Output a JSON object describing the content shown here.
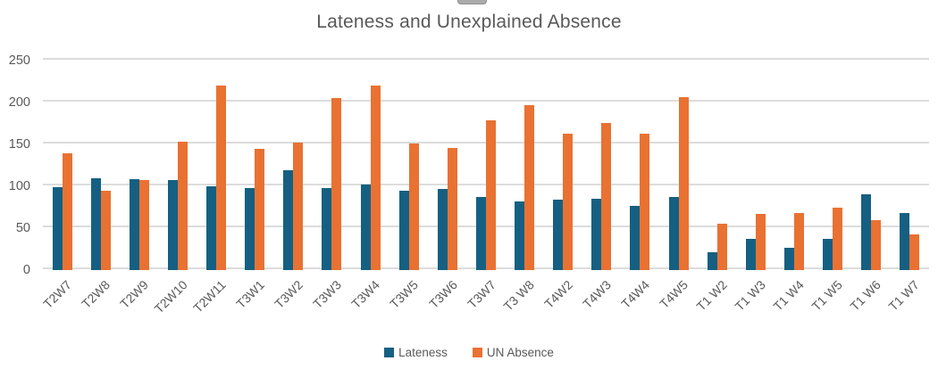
{
  "chart_data": {
    "type": "bar",
    "title": "Lateness and Unexplained Absence",
    "categories": [
      "T2W7",
      "T2W8",
      "T2W9",
      "T2W10",
      "T2W11",
      "T3W1",
      "T3W2",
      "T3W3",
      "T3W4",
      "T3W5",
      "T3W6",
      "T3W7",
      "T3 W8",
      "T4W2",
      "T4W3",
      "T4W4",
      "T4W5",
      "T1 W2",
      "T1 W3",
      "T1 W4",
      "T1 W5",
      "T1 W6",
      "T1 W7"
    ],
    "series": [
      {
        "name": "Lateness",
        "color": "#156082",
        "values": [
          99,
          110,
          108,
          107,
          100,
          98,
          119,
          98,
          102,
          95,
          97,
          87,
          82,
          84,
          85,
          77,
          87,
          21,
          37,
          27,
          37,
          90,
          68
        ]
      },
      {
        "name": "UN Absence",
        "color": "#E97132",
        "values": [
          139,
          95,
          107,
          153,
          220,
          145,
          152,
          205,
          220,
          151,
          146,
          179,
          197,
          163,
          176,
          163,
          206,
          55,
          67,
          68,
          75,
          60,
          43
        ]
      }
    ],
    "xlabel": "",
    "ylabel": "",
    "ylim": [
      0,
      250
    ],
    "yticks": [
      0,
      50,
      100,
      150,
      200,
      250
    ],
    "grid": true,
    "legend_position": "bottom",
    "bar_orientation": "vertical"
  },
  "colors": {
    "lateness": "#156082",
    "un_absence": "#E97132",
    "gridline": "#dcdcdc",
    "axis_text": "#595959",
    "title_text": "#595959"
  }
}
